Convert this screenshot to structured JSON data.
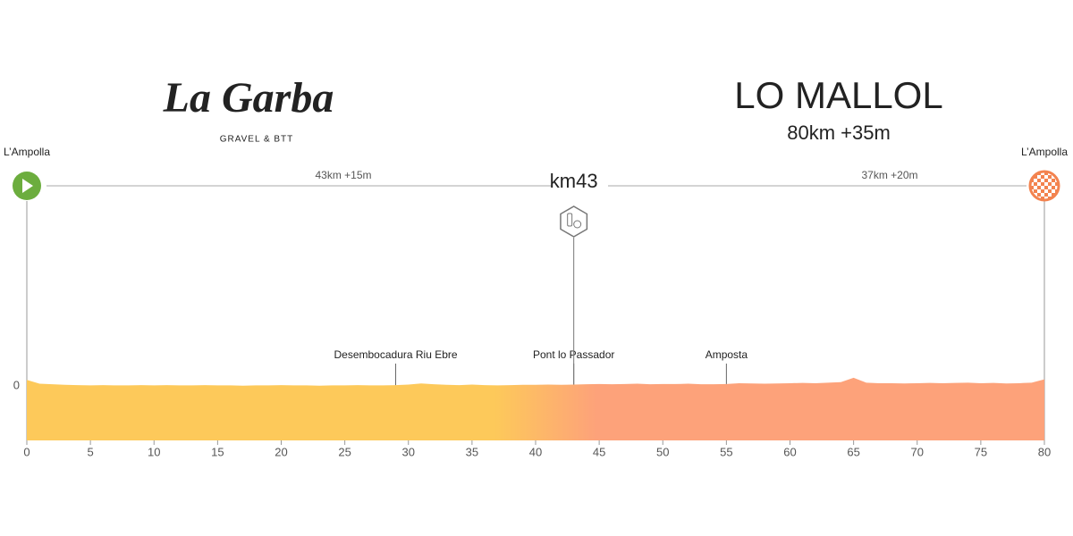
{
  "chart_data": {
    "type": "area",
    "brand": "La Garba",
    "brand_subtitle": "GRAVEL & BTT",
    "title": "LO MALLOL",
    "subtitle": "80km +35m",
    "start_label": "L’Ampolla",
    "end_label": "L’Ampolla",
    "segments": [
      "43km +15m",
      "37km +20m"
    ],
    "checkpoint": {
      "label": "km43",
      "x": 43
    },
    "waypoints": [
      {
        "label": "Desembocadura Riu Ebre",
        "x": 29
      },
      {
        "label": "Pont lo Passador",
        "x": 43
      },
      {
        "label": "Amposta",
        "x": 55
      }
    ],
    "x": [
      0,
      1,
      2,
      3,
      4,
      5,
      6,
      7,
      8,
      9,
      10,
      11,
      12,
      13,
      14,
      15,
      16,
      17,
      18,
      19,
      20,
      21,
      22,
      23,
      24,
      25,
      26,
      27,
      28,
      29,
      30,
      31,
      32,
      33,
      34,
      35,
      36,
      37,
      38,
      39,
      40,
      41,
      42,
      43,
      44,
      45,
      46,
      47,
      48,
      49,
      50,
      51,
      52,
      53,
      54,
      55,
      56,
      57,
      58,
      59,
      60,
      61,
      62,
      63,
      64,
      65,
      66,
      67,
      68,
      69,
      70,
      71,
      72,
      73,
      74,
      75,
      76,
      77,
      78,
      79,
      80
    ],
    "values": [
      2.2,
      0.8,
      0.6,
      0.4,
      0.3,
      0.2,
      0.3,
      0.2,
      0.2,
      0.3,
      0.2,
      0.3,
      0.2,
      0.2,
      0.3,
      0.2,
      0.2,
      0.1,
      0.2,
      0.2,
      0.3,
      0.2,
      0.2,
      0.1,
      0.2,
      0.2,
      0.3,
      0.2,
      0.2,
      0.3,
      0.5,
      0.9,
      0.6,
      0.4,
      0.3,
      0.5,
      0.3,
      0.2,
      0.3,
      0.4,
      0.4,
      0.5,
      0.4,
      0.5,
      0.6,
      0.7,
      0.6,
      0.7,
      0.8,
      0.6,
      0.7,
      0.7,
      0.8,
      0.6,
      0.6,
      0.7,
      1.0,
      0.9,
      0.8,
      0.9,
      1.0,
      1.1,
      1.0,
      1.2,
      1.4,
      3.0,
      1.2,
      1.0,
      1.0,
      0.9,
      1.0,
      1.1,
      1.0,
      1.1,
      1.2,
      1.0,
      1.1,
      0.9,
      1.0,
      1.2,
      2.4
    ],
    "xlim": [
      0,
      80
    ],
    "ylim": [
      -20,
      80
    ],
    "xticks": [
      0,
      5,
      10,
      15,
      20,
      25,
      30,
      35,
      40,
      45,
      50,
      55,
      60,
      65,
      70,
      75,
      80
    ],
    "yticks": [
      0
    ],
    "colors": [
      "#fdc95a",
      "#fda27a"
    ],
    "start_color": "#6cad3e",
    "end_color": "#f3834f"
  }
}
